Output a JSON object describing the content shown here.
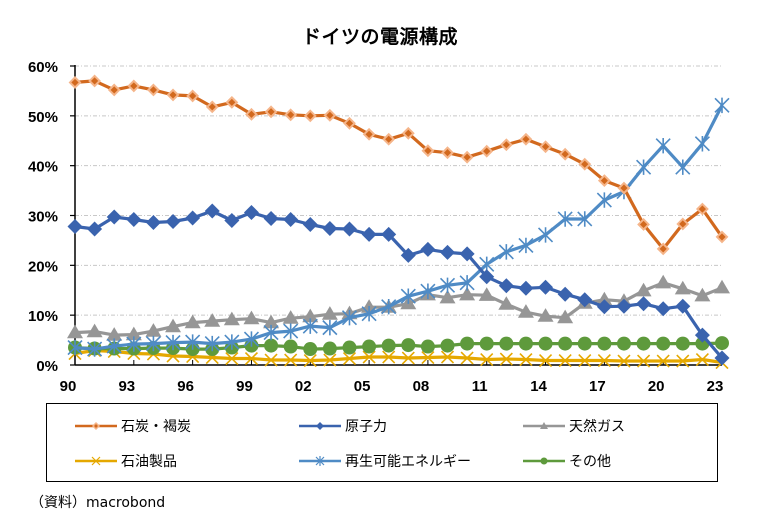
{
  "chart_data": {
    "type": "line",
    "title": "ドイツの電源構成",
    "xlabel": "",
    "ylabel": "",
    "x": [
      "1990",
      "1991",
      "1992",
      "1993",
      "1994",
      "1995",
      "1996",
      "1997",
      "1998",
      "1999",
      "2000",
      "2001",
      "2002",
      "2003",
      "2004",
      "2005",
      "2006",
      "2007",
      "2008",
      "2009",
      "2010",
      "2011",
      "2012",
      "2013",
      "2014",
      "2015",
      "2016",
      "2017",
      "2018",
      "2019",
      "2020",
      "2021",
      "2022",
      "2023"
    ],
    "x_tick_labels": [
      "90",
      "93",
      "96",
      "99",
      "02",
      "05",
      "08",
      "11",
      "14",
      "17",
      "20",
      "23"
    ],
    "y_tick_labels": [
      "0%",
      "10%",
      "20%",
      "30%",
      "40%",
      "50%",
      "60%"
    ],
    "ylim": [
      0,
      60
    ],
    "y_unit": "%",
    "grid": "horizontal dashed",
    "legend_position": "bottom",
    "series": [
      {
        "name": "石炭・褐炭",
        "color": "#D2691E",
        "marker": "diamond-small",
        "values": [
          56.7,
          57.0,
          55.2,
          56.0,
          55.2,
          54.2,
          54.0,
          51.8,
          52.7,
          50.3,
          50.8,
          50.2,
          50.0,
          50.1,
          48.5,
          46.3,
          45.3,
          46.5,
          43.0,
          42.6,
          41.7,
          42.9,
          44.2,
          45.3,
          43.8,
          42.3,
          40.3,
          37.0,
          35.5,
          28.2,
          23.3,
          28.3,
          31.3,
          25.7
        ]
      },
      {
        "name": "原子力",
        "color": "#3A63AE",
        "marker": "diamond",
        "values": [
          27.8,
          27.3,
          29.7,
          29.2,
          28.6,
          28.8,
          29.5,
          30.9,
          29.0,
          30.6,
          29.4,
          29.2,
          28.2,
          27.4,
          27.3,
          26.2,
          26.2,
          22.0,
          23.2,
          22.6,
          22.3,
          17.7,
          15.9,
          15.4,
          15.6,
          14.2,
          13.1,
          11.7,
          11.8,
          12.3,
          11.3,
          11.8,
          6.0,
          1.4
        ]
      },
      {
        "name": "天然ガス",
        "color": "#969696",
        "marker": "triangle",
        "values": [
          6.5,
          6.7,
          6.0,
          6.1,
          6.8,
          7.7,
          8.5,
          8.8,
          9.1,
          9.3,
          8.5,
          9.4,
          9.7,
          10.2,
          10.3,
          11.6,
          11.6,
          12.3,
          14.1,
          13.5,
          14.1,
          14.0,
          12.2,
          10.6,
          9.8,
          9.5,
          12.4,
          13.1,
          12.8,
          14.9,
          16.5,
          15.3,
          13.9,
          15.5
        ]
      },
      {
        "name": "石油製品",
        "color": "#E5A800",
        "marker": "x",
        "values": [
          2.3,
          2.9,
          2.7,
          2.3,
          2.2,
          1.8,
          1.7,
          1.5,
          1.3,
          1.3,
          1.0,
          1.0,
          0.9,
          1.0,
          1.3,
          1.6,
          1.6,
          1.4,
          1.5,
          1.6,
          1.4,
          1.1,
          1.2,
          1.1,
          0.9,
          0.9,
          0.9,
          0.9,
          0.8,
          0.8,
          0.8,
          0.8,
          1.1,
          0.5
        ]
      },
      {
        "name": "再生可能エネルギー",
        "color": "#4F8BC5",
        "marker": "star",
        "values": [
          3.5,
          3.2,
          3.8,
          4.2,
          4.3,
          4.5,
          4.6,
          4.3,
          4.6,
          5.2,
          6.5,
          6.8,
          7.8,
          7.5,
          9.5,
          10.3,
          11.7,
          13.8,
          14.8,
          16.0,
          16.5,
          20.2,
          22.7,
          24.0,
          26.1,
          29.3,
          29.3,
          33.1,
          34.8,
          39.7,
          44.0,
          39.7,
          44.4,
          52.1
        ]
      },
      {
        "name": "その他",
        "color": "#5E9A3C",
        "marker": "circle",
        "values": [
          3.5,
          3.3,
          3.3,
          3.3,
          3.4,
          3.4,
          3.2,
          3.2,
          3.5,
          3.9,
          3.9,
          3.7,
          3.2,
          3.3,
          3.5,
          3.7,
          3.9,
          4.0,
          3.7,
          3.9,
          4.3,
          4.3,
          4.3,
          4.3,
          4.3,
          4.3,
          4.3,
          4.3,
          4.3,
          4.3,
          4.3,
          4.3,
          4.3,
          4.4
        ]
      }
    ],
    "legend_order": [
      0,
      1,
      2,
      3,
      4,
      5
    ],
    "source": "（資料）macrobond"
  }
}
